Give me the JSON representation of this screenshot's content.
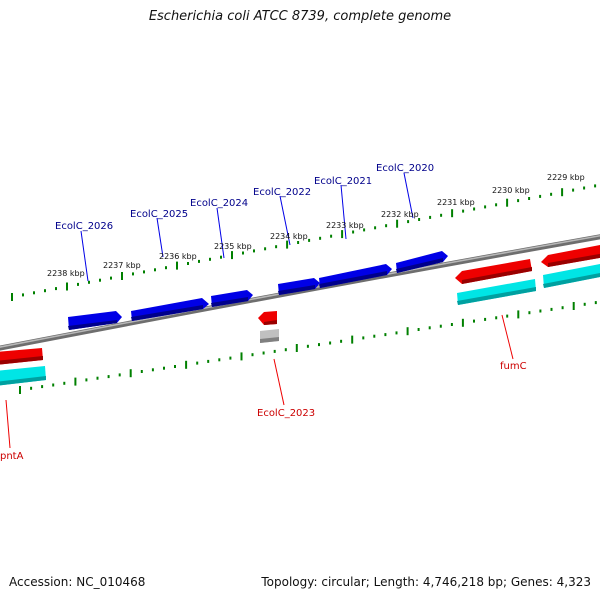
{
  "title": "Escherichia coli ATCC 8739, complete genome",
  "footer": {
    "accession": "Accession: NC_010468",
    "stats": "Topology: circular; Length: 4,746,218 bp; Genes: 4,323"
  },
  "colors": {
    "forward_gene": "#0000e6",
    "reverse_gene": "#ee0000",
    "rna": "#00e5e5",
    "pseudo": "#b0b0b0",
    "backbone": "#808080",
    "ticks": "#008000",
    "forward_label": "#00008b",
    "reverse_label": "#cc0000"
  },
  "ticks": [
    {
      "label": "2238 kbp"
    },
    {
      "label": "2237 kbp"
    },
    {
      "label": "2236 kbp"
    },
    {
      "label": "2235 kbp"
    },
    {
      "label": "2234 kbp"
    },
    {
      "label": "2233 kbp"
    },
    {
      "label": "2232 kbp"
    },
    {
      "label": "2231 kbp"
    },
    {
      "label": "2230 kbp"
    },
    {
      "label": "2229 kbp"
    }
  ],
  "forward_genes": [
    {
      "label": "EcolC_2026"
    },
    {
      "label": "EcolC_2025"
    },
    {
      "label": "EcolC_2024"
    },
    {
      "label": "EcolC_2022"
    },
    {
      "label": "EcolC_2021"
    },
    {
      "label": "EcolC_2020"
    }
  ],
  "reverse_genes": [
    {
      "label": "EcolC_2023"
    },
    {
      "label": "fumC"
    },
    {
      "label": "pntA"
    }
  ]
}
